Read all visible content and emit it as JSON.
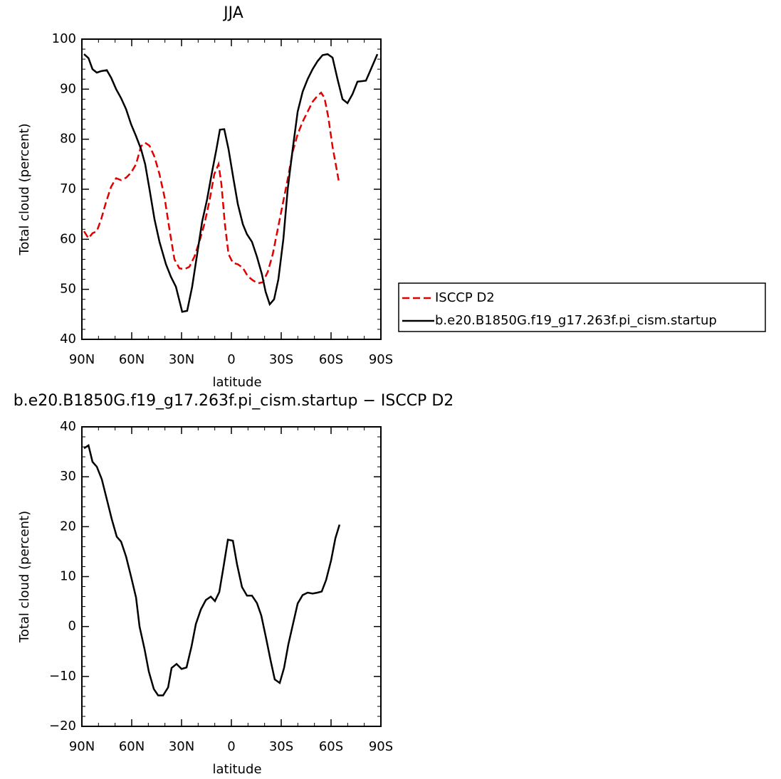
{
  "chart_data": [
    {
      "type": "line",
      "title": "JJA",
      "xlabel": "latitude",
      "ylabel": "Total cloud (percent)",
      "xlim": [
        90,
        -90
      ],
      "xticks": [
        {
          "value": 90,
          "label": "90N"
        },
        {
          "value": 60,
          "label": "60N"
        },
        {
          "value": 30,
          "label": "30N"
        },
        0,
        {
          "value": -30,
          "label": "30S"
        },
        {
          "value": -60,
          "label": "60S"
        },
        {
          "value": -90,
          "label": "90S"
        }
      ],
      "ylim": [
        40,
        100
      ],
      "yticks": [
        40,
        50,
        60,
        70,
        80,
        90,
        100
      ],
      "legend": "right",
      "series": [
        {
          "name": "ISCCP D2",
          "color": "#e00000",
          "linestyle": "dashed",
          "x": [
            88.7,
            86,
            83.6,
            81,
            78.4,
            75.4,
            72.4,
            69.4,
            66.4,
            63.4,
            60.4,
            57.4,
            54.4,
            51.9,
            49.3,
            46.3,
            43.3,
            40.3,
            37.3,
            34.3,
            31.3,
            28.3,
            25.3,
            22.3,
            19.3,
            16.3,
            13.3,
            10.3,
            7.7,
            6,
            3.9,
            1.7,
            -0.9,
            -3.9,
            -6.9,
            -9.9,
            -12.9,
            -15.9,
            -18.9,
            -21.9,
            -24.9,
            -27.9,
            -30.9,
            -33.9,
            -36.9,
            -39.9,
            -42.9,
            -45.9,
            -48.9,
            -51.9,
            -54,
            -56,
            -58.3,
            -60.9,
            -64.7
          ],
          "values": [
            61.6,
            60.2,
            61.2,
            61.6,
            64,
            67.5,
            70.5,
            72.2,
            71.8,
            72.3,
            73.3,
            75,
            78.6,
            79.3,
            78.7,
            76.5,
            73,
            68.5,
            62,
            56,
            54.2,
            54,
            54.5,
            56.5,
            59.5,
            63,
            67.5,
            73,
            75,
            71,
            63,
            57,
            55.3,
            55,
            54.3,
            52.6,
            51.8,
            51.2,
            51.4,
            53.5,
            57,
            62,
            67,
            72,
            77.5,
            81,
            83.5,
            85.5,
            87.5,
            88.7,
            89.3,
            88.3,
            84.5,
            78.5,
            71.5
          ]
        },
        {
          "name": "b.e20.B1850G.f19_g17.263f.pi_cism.startup",
          "color": "#000000",
          "linestyle": "solid",
          "x": [
            88.7,
            86,
            83.6,
            81,
            78.4,
            75,
            72.4,
            69.4,
            66.4,
            63.4,
            60.4,
            57.4,
            54.4,
            51.9,
            49.3,
            46.3,
            43.3,
            39.4,
            36.4,
            33.4,
            29.6,
            26.6,
            23.6,
            20.6,
            17.6,
            14.6,
            11.6,
            9,
            6.9,
            4.3,
            1.7,
            -1.3,
            -3.9,
            -6.9,
            -9.4,
            -12.4,
            -15.4,
            -18.4,
            -20.6,
            -23.1,
            -25.7,
            -28.3,
            -31.3,
            -33.9,
            -36.9,
            -39.9,
            -42.9,
            -45.9,
            -48.9,
            -51.9,
            -54.9,
            -57.9,
            -60.9,
            -63.9,
            -66.9,
            -69.9,
            -72.9,
            -75.9,
            -81,
            -84,
            -87.9
          ],
          "values": [
            97,
            96.2,
            94,
            93.3,
            93.6,
            93.8,
            92.3,
            90,
            88.2,
            86,
            83,
            80.6,
            78,
            75,
            70,
            64,
            59.5,
            55,
            52.5,
            50.5,
            45.5,
            45.7,
            50.5,
            57,
            63.5,
            68,
            73.5,
            78,
            81.9,
            82,
            78,
            72,
            67,
            63,
            61,
            59.5,
            56.5,
            53,
            49.5,
            47,
            48,
            52,
            60,
            70,
            78,
            85.5,
            89.5,
            92,
            94,
            95.6,
            96.8,
            97,
            96.3,
            92,
            88,
            87.2,
            89,
            91.5,
            91.7,
            94,
            97
          ]
        }
      ]
    },
    {
      "type": "line",
      "title": "b.e20.B1850G.f19_g17.263f.pi_cism.startup − ISCCP D2",
      "xlabel": "latitude",
      "ylabel": "Total cloud (percent)",
      "xlim": [
        90,
        -90
      ],
      "xticks": [
        {
          "value": 90,
          "label": "90N"
        },
        {
          "value": 60,
          "label": "60N"
        },
        {
          "value": 30,
          "label": "30N"
        },
        0,
        {
          "value": -30,
          "label": "30S"
        },
        {
          "value": -60,
          "label": "60S"
        },
        {
          "value": -90,
          "label": "90S"
        }
      ],
      "ylim": [
        -20,
        40
      ],
      "yticks": [
        {
          "value": -20,
          "label": "−20"
        },
        {
          "value": -10,
          "label": "−10"
        },
        0,
        10,
        20,
        30,
        40
      ],
      "series": [
        {
          "color": "#000000",
          "linestyle": "solid",
          "x": [
            88.7,
            86,
            83.6,
            81,
            78,
            75,
            72,
            69,
            66.4,
            63.4,
            60.4,
            57.4,
            55.3,
            52.3,
            49.7,
            46.7,
            44.1,
            41.1,
            38.1,
            36,
            33,
            30,
            27,
            24,
            21.4,
            18.4,
            15.4,
            12.4,
            9.9,
            7.3,
            4.7,
            2.1,
            -0.9,
            -3.4,
            -6.4,
            -9.4,
            -12.4,
            -15.4,
            -18,
            -21,
            -23.6,
            -26.1,
            -29.1,
            -31.7,
            -34.3,
            -37.3,
            -39.9,
            -42.9,
            -45.9,
            -48.9,
            -51.9,
            -54.4,
            -57,
            -60,
            -62.6,
            -65.1
          ],
          "values": [
            35.7,
            36.3,
            33,
            32,
            29.5,
            25.5,
            21.5,
            18,
            17,
            14,
            10,
            5.8,
            0,
            -4.5,
            -9,
            -12.5,
            -13.8,
            -13.8,
            -12.2,
            -8.3,
            -7.5,
            -8.5,
            -8.2,
            -4,
            0.5,
            3.4,
            5.3,
            6,
            5.1,
            6.9,
            12,
            17.4,
            17.2,
            12.5,
            7.9,
            6.2,
            6.2,
            4.7,
            2.2,
            -2.5,
            -6.8,
            -10.6,
            -11.3,
            -8.3,
            -3.6,
            0.8,
            4.6,
            6.3,
            6.8,
            6.6,
            6.8,
            7,
            9.3,
            13.2,
            17.7,
            20.4
          ]
        }
      ]
    }
  ]
}
